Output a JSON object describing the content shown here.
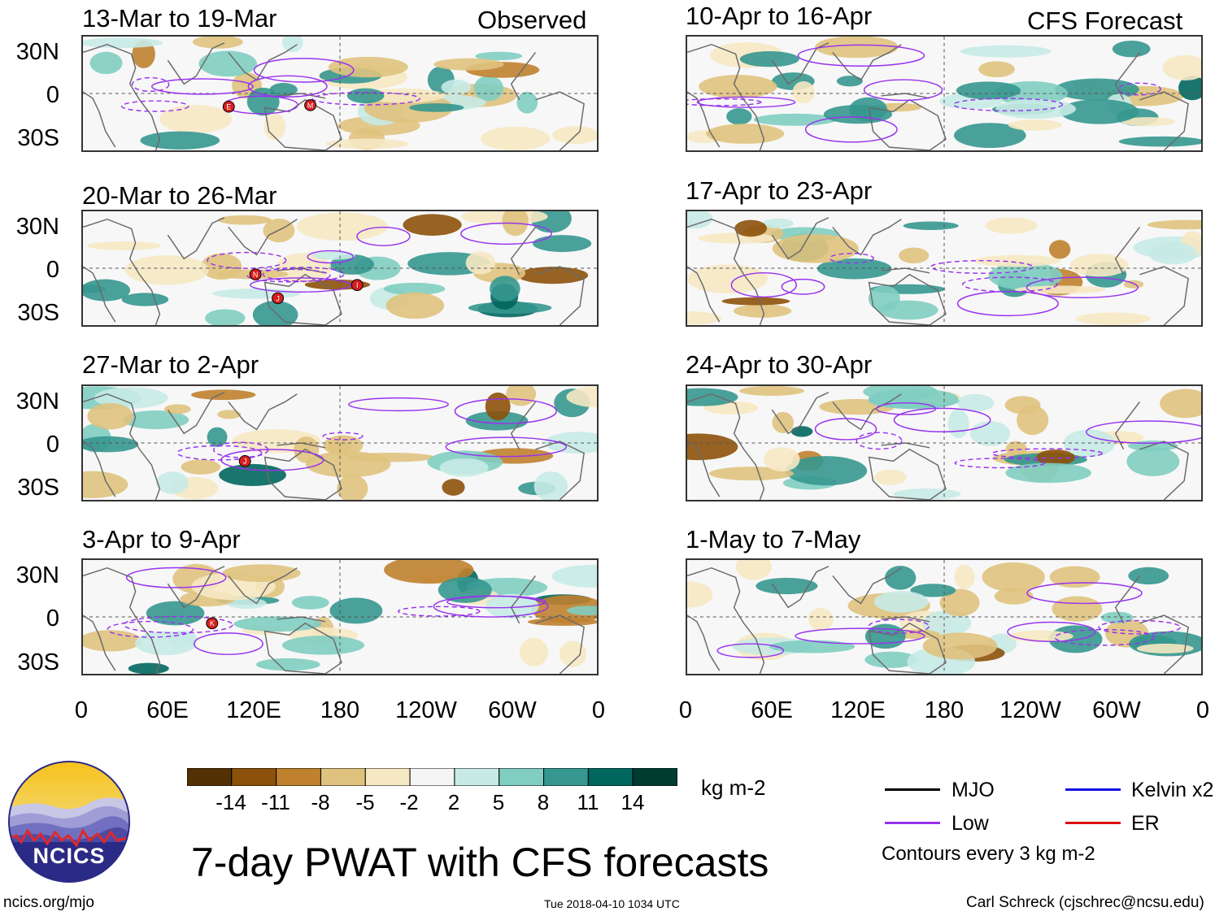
{
  "labels": {
    "observed": "Observed",
    "forecast": "CFS Forecast",
    "lat_n": "30N",
    "lat_0": "0",
    "lat_s": "30S",
    "lon": [
      "0",
      "60E",
      "120E",
      "180",
      "120W",
      "60W",
      "0"
    ]
  },
  "panels_left": [
    {
      "title": "13-Mar to 19-Mar",
      "storms": [
        "E",
        "M"
      ]
    },
    {
      "title": "20-Mar to 26-Mar",
      "storms": [
        "J",
        "N",
        "I"
      ]
    },
    {
      "title": "27-Mar to 2-Apr",
      "storms": [
        "J"
      ]
    },
    {
      "title": "3-Apr to 9-Apr",
      "storms": [
        "K"
      ]
    }
  ],
  "panels_right": [
    {
      "title": "10-Apr to 16-Apr"
    },
    {
      "title": "17-Apr to 23-Apr"
    },
    {
      "title": "24-Apr to 30-Apr"
    },
    {
      "title": "1-May to 7-May"
    }
  ],
  "colorbar": {
    "unit": "kg m-2",
    "ticks": [
      "-14",
      "-11",
      "-8",
      "-5",
      "-2",
      "2",
      "5",
      "8",
      "11",
      "14"
    ],
    "colors": [
      "#543005",
      "#8c510a",
      "#bf812d",
      "#dfc27d",
      "#f6e8c3",
      "#f5f5f5",
      "#c7eae5",
      "#80cdc1",
      "#35978f",
      "#01665e",
      "#003c30"
    ]
  },
  "legend": {
    "mjo": "MJO",
    "kelvin": "Kelvin x2",
    "low": "Low",
    "er": "ER",
    "contours": "Contours every 3 kg m-2",
    "colors": {
      "mjo": "#000000",
      "kelvin": "#1010dd",
      "low": "#9933ee",
      "er": "#dd1111"
    }
  },
  "logo": {
    "text": "NCICS"
  },
  "main_title": "7-day PWAT with CFS forecasts",
  "footer": {
    "url": "ncics.org/mjo",
    "timestamp": "Tue 2018-04-10 1034 UTC",
    "credit": "Carl Schreck (cjschrec@ncsu.edu)"
  }
}
